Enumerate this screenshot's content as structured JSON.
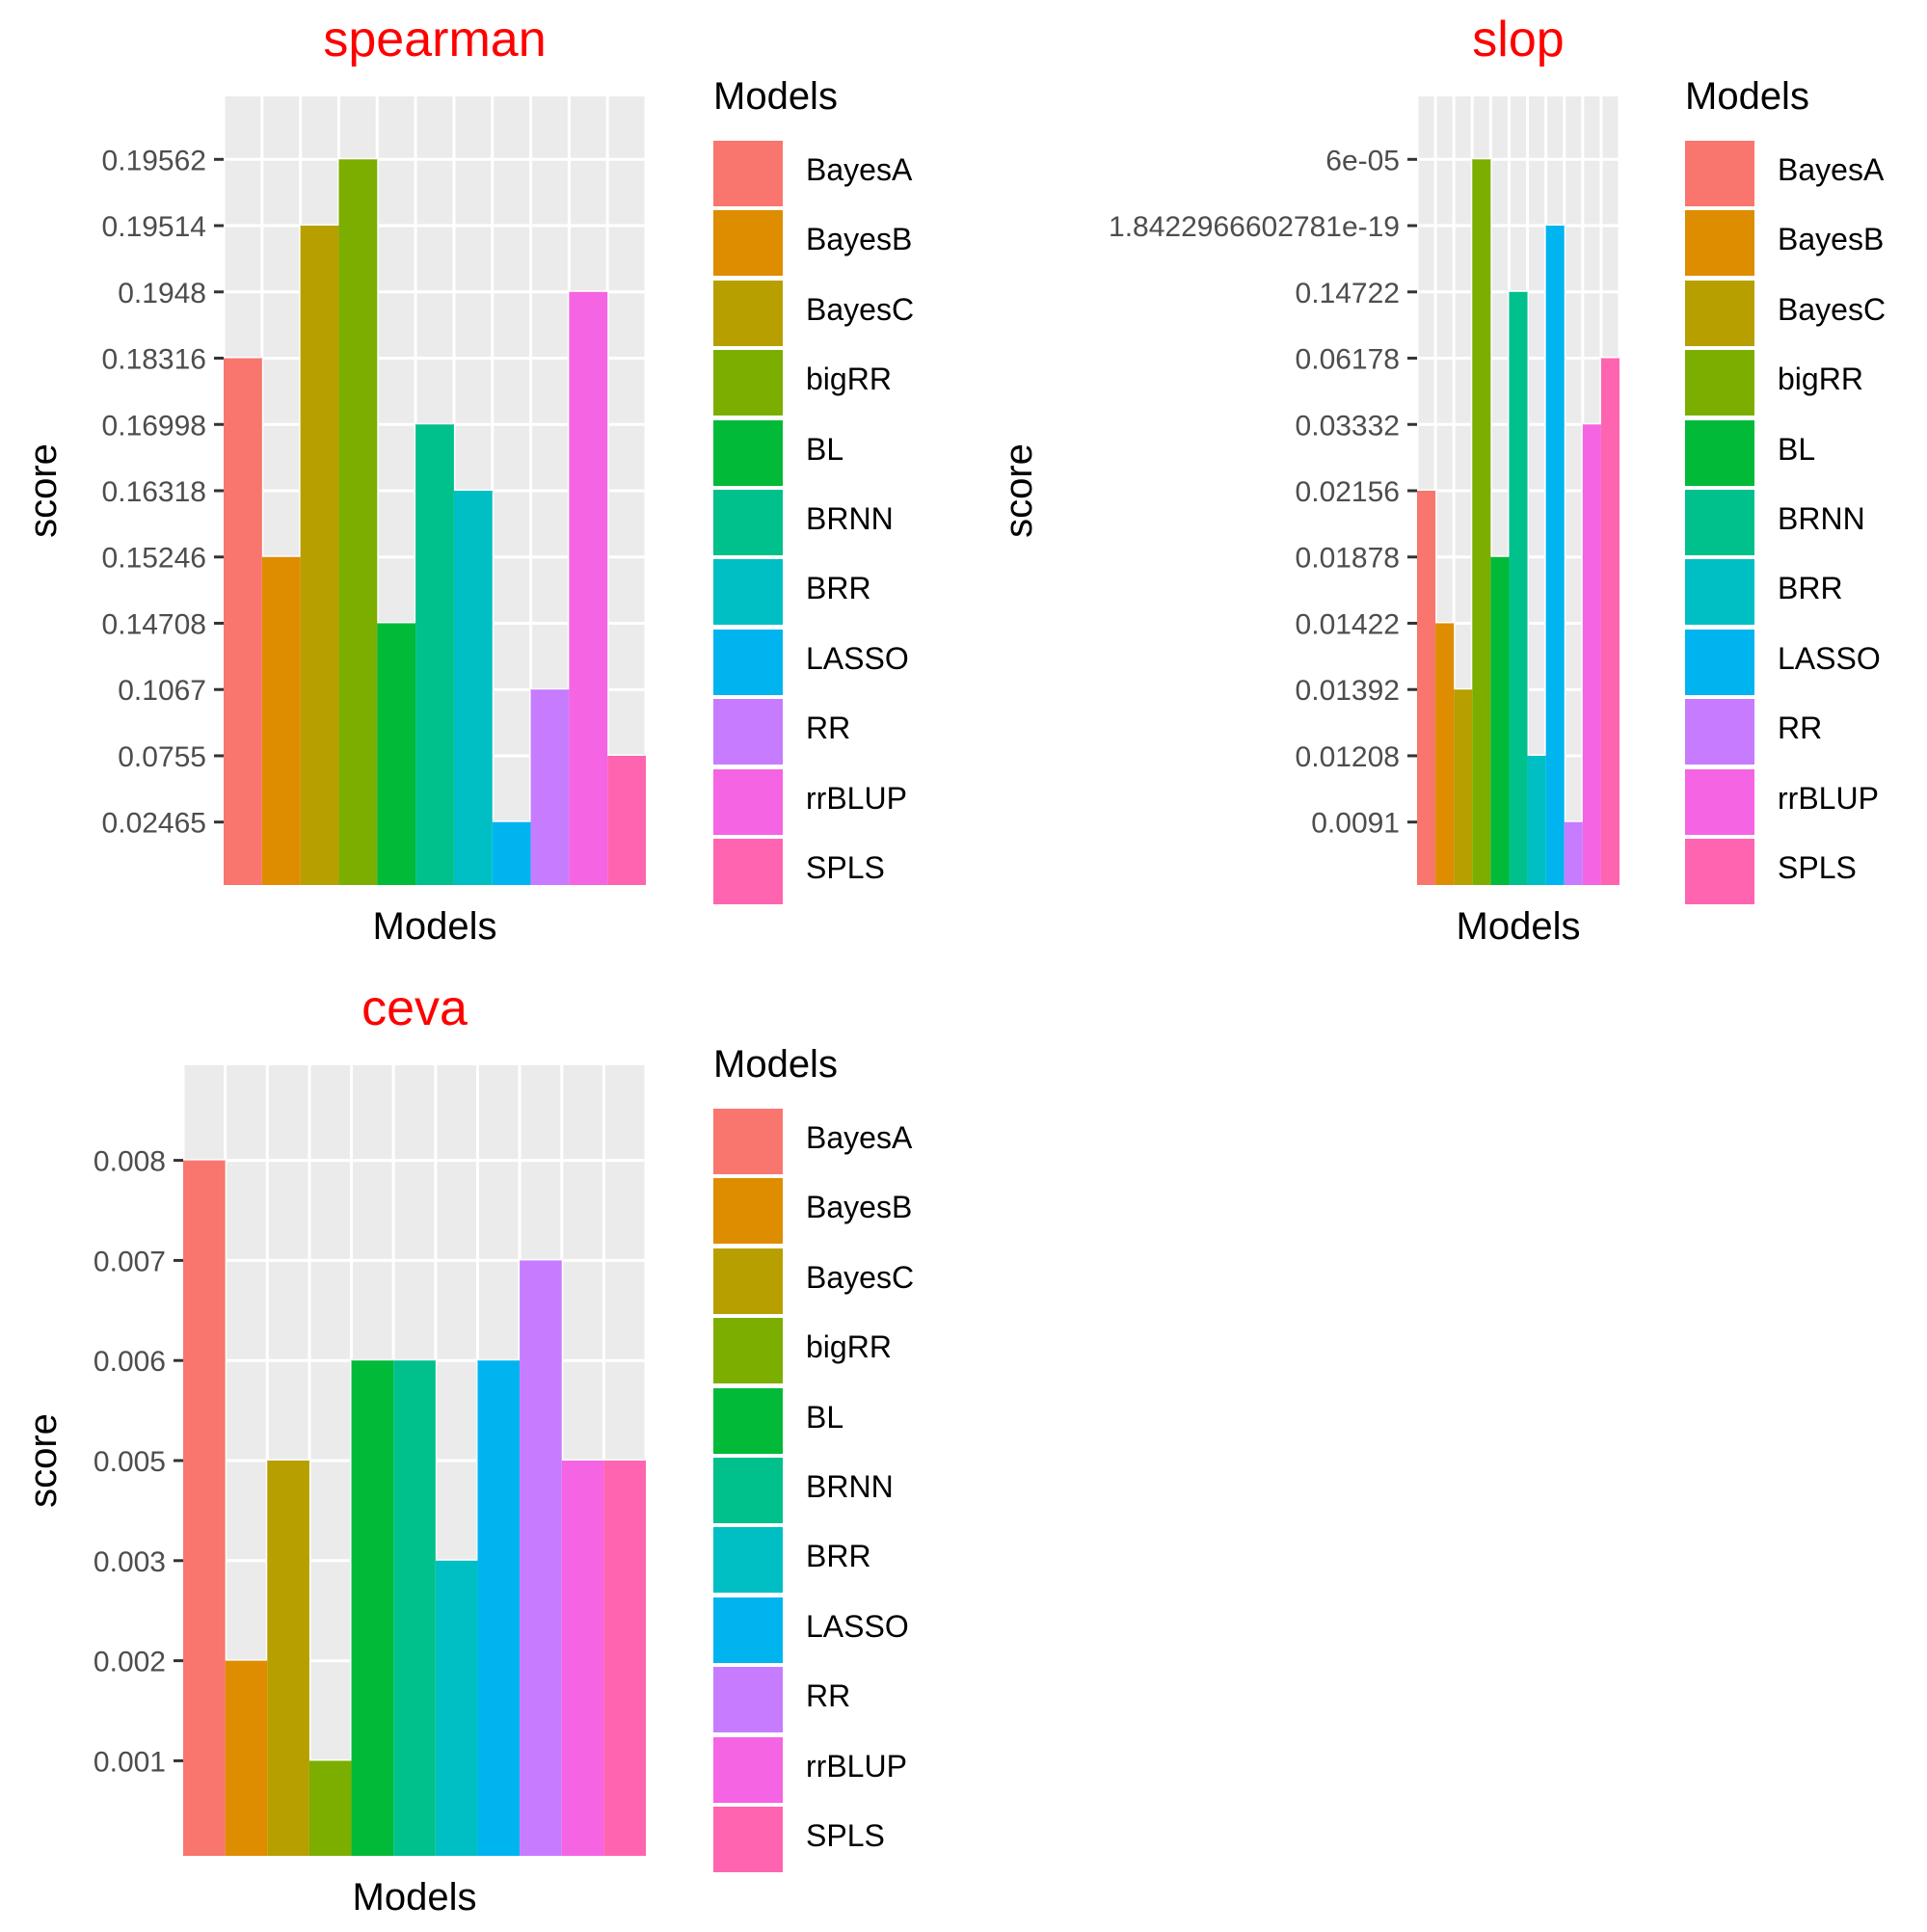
{
  "colors": {
    "BayesA": "#F8766D",
    "BayesB": "#DE8C00",
    "BayesC": "#B79F00",
    "bigRR": "#7CAE00",
    "BL": "#00BA38",
    "BRNN": "#00C08B",
    "BRR": "#00BFC4",
    "LASSO": "#00B4F0",
    "RR": "#C77CFF",
    "rrBLUP": "#F564E3",
    "SPLS": "#FF64B0",
    "title": "#FF0000",
    "panel_bg": "#EBEBEB"
  },
  "legend": {
    "title": "Models",
    "items": [
      "BayesA",
      "BayesB",
      "BayesC",
      "bigRR",
      "BL",
      "BRNN",
      "BRR",
      "LASSO",
      "RR",
      "rrBLUP",
      "SPLS"
    ]
  },
  "chart_data": [
    {
      "type": "bar",
      "title": "spearman",
      "xlabel": "Models",
      "ylabel": "score",
      "y_scale": "discrete (ordinal tick labels)",
      "categories": [
        "BayesA",
        "BayesB",
        "BayesC",
        "bigRR",
        "BL",
        "BRNN",
        "BRR",
        "LASSO",
        "RR",
        "rrBLUP",
        "SPLS"
      ],
      "y_ticks": [
        "0.02465",
        "0.0755",
        "0.1067",
        "0.14708",
        "0.15246",
        "0.16318",
        "0.16998",
        "0.18316",
        "0.1948",
        "0.19514",
        "0.19562"
      ],
      "values": [
        "0.18316",
        "0.15246",
        "0.19514",
        "0.19562",
        "0.14708",
        "0.16998",
        "0.16318",
        "0.02465",
        "0.1067",
        "0.1948",
        "0.0755"
      ],
      "grid": true,
      "legend_position": "right"
    },
    {
      "type": "bar",
      "title": "slop",
      "xlabel": "Models",
      "ylabel": "score",
      "y_scale": "discrete (ordinal tick labels)",
      "categories": [
        "BayesA",
        "BayesB",
        "BayesC",
        "bigRR",
        "BL",
        "BRNN",
        "BRR",
        "LASSO",
        "RR",
        "rrBLUP",
        "SPLS"
      ],
      "y_ticks": [
        "0.0091",
        "0.01208",
        "0.01392",
        "0.01422",
        "0.01878",
        "0.02156",
        "0.03332",
        "0.06178",
        "0.14722",
        "1.8422966602781e-19",
        "6e-05"
      ],
      "values": [
        "0.02156",
        "0.01422",
        "0.01392",
        "6e-05",
        "0.01878",
        "0.14722",
        "0.01208",
        "1.8422966602781e-19",
        "0.0091",
        "0.03332",
        "0.06178"
      ],
      "grid": true,
      "legend_position": "right"
    },
    {
      "type": "bar",
      "title": "ceva",
      "xlabel": "Models",
      "ylabel": "score",
      "y_scale": "discrete (ordinal tick labels)",
      "categories": [
        "BayesA",
        "BayesB",
        "BayesC",
        "bigRR",
        "BL",
        "BRNN",
        "BRR",
        "LASSO",
        "RR",
        "rrBLUP",
        "SPLS"
      ],
      "y_ticks": [
        "0.001",
        "0.002",
        "0.003",
        "0.005",
        "0.006",
        "0.007",
        "0.008"
      ],
      "values": [
        "0.008",
        "0.002",
        "0.005",
        "0.001",
        "0.006",
        "0.006",
        "0.003",
        "0.006",
        "0.007",
        "0.005",
        "0.005"
      ],
      "grid": true,
      "legend_position": "right"
    }
  ]
}
